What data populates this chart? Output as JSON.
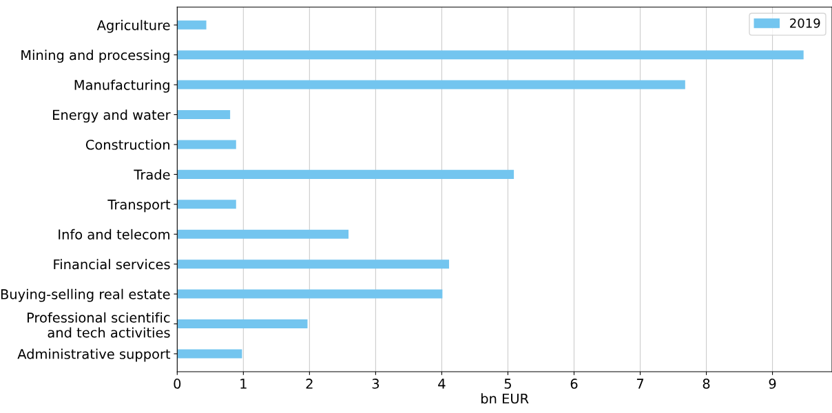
{
  "chart_data": {
    "type": "bar",
    "orientation": "horizontal",
    "xlabel": "bn EUR",
    "categories": [
      "Agriculture",
      "Mining and processing",
      "Manufacturing",
      "Energy and water",
      "Construction",
      "Trade",
      "Transport",
      "Info and telecom",
      "Financial services",
      "Buying-selling real estate",
      "Professional scientific\nand tech activities",
      "Administrative support"
    ],
    "series": [
      {
        "name": "2019",
        "color": "#73c5ef",
        "values": [
          0.44,
          9.47,
          7.68,
          0.8,
          0.89,
          5.09,
          0.89,
          2.59,
          4.11,
          4.01,
          1.97,
          0.98
        ]
      }
    ],
    "xlim": [
      0,
      9.9
    ],
    "xticks": [
      0,
      1,
      2,
      3,
      4,
      5,
      6,
      7,
      8,
      9
    ],
    "grid": "x",
    "legend": "top right"
  }
}
